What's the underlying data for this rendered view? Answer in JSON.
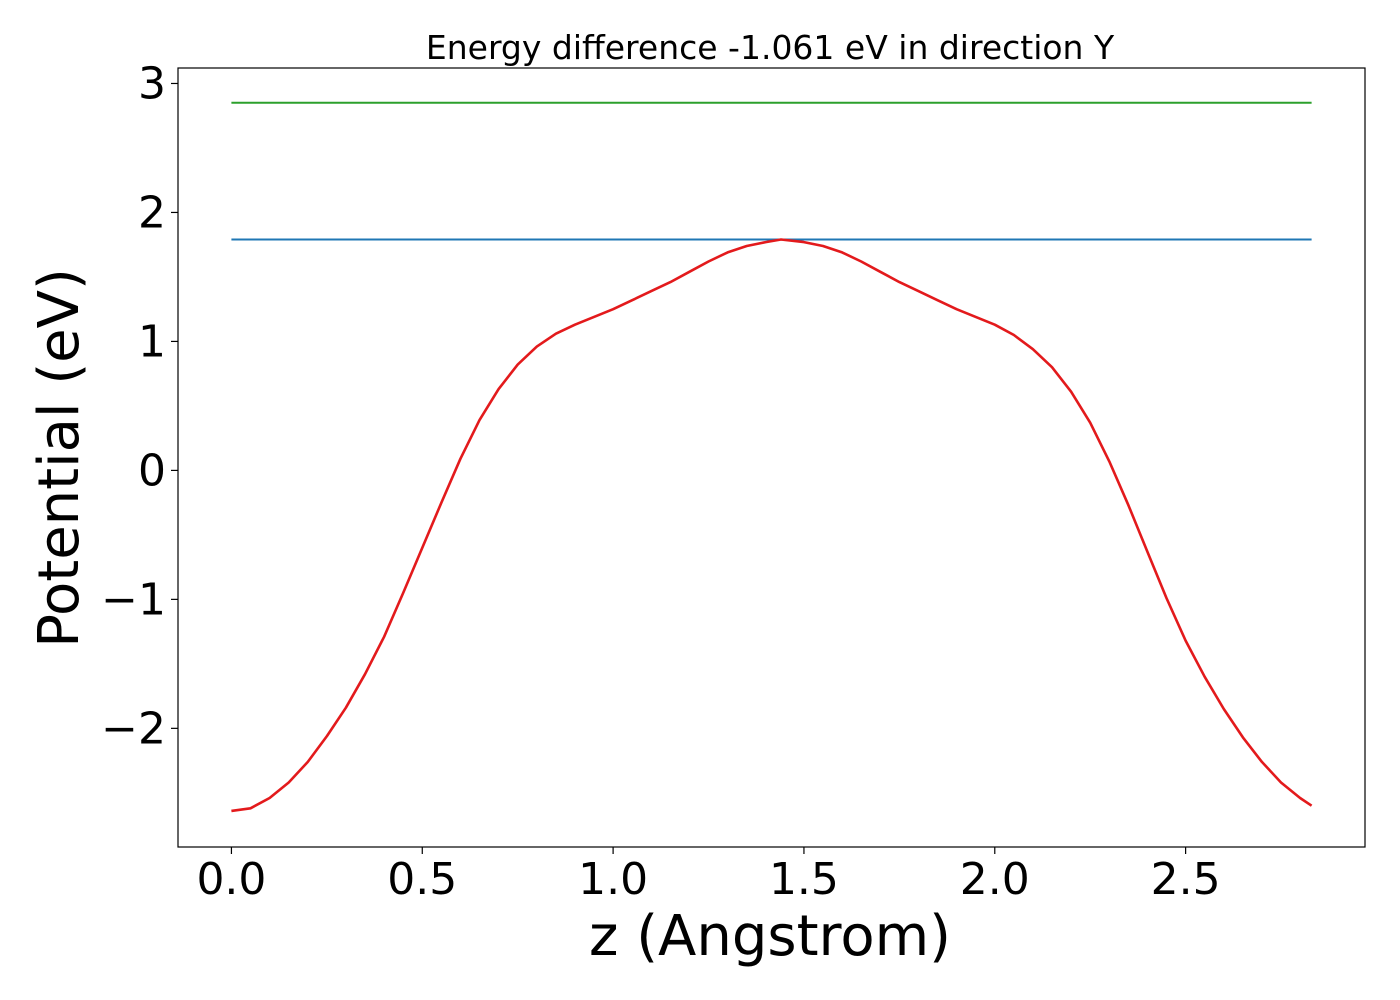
{
  "chart_data": {
    "type": "line",
    "title": "Energy difference -1.061 eV in direction Y",
    "xlabel": "z (Angstrom)",
    "ylabel": "Potential (eV)",
    "xlim": [
      -0.14,
      2.97
    ],
    "ylim": [
      -2.92,
      3.12
    ],
    "xticks": [
      0.0,
      0.5,
      1.0,
      1.5,
      2.0,
      2.5
    ],
    "xtick_labels": [
      "0.0",
      "0.5",
      "1.0",
      "1.5",
      "2.0",
      "2.5"
    ],
    "yticks": [
      -2,
      -1,
      0,
      1,
      2,
      3
    ],
    "ytick_labels": [
      "−2",
      "−1",
      "0",
      "1",
      "2",
      "3"
    ],
    "grid": false,
    "legend": false,
    "series": [
      {
        "color": "#2ca02c",
        "x": [
          0.0,
          2.83
        ],
        "y": [
          2.85,
          2.85
        ]
      },
      {
        "color": "#1f77b4",
        "x": [
          0.0,
          2.83
        ],
        "y": [
          1.79,
          1.79
        ]
      },
      {
        "color": "#e31a1c",
        "x": [
          0.0,
          0.05,
          0.1,
          0.15,
          0.2,
          0.25,
          0.3,
          0.35,
          0.4,
          0.45,
          0.5,
          0.55,
          0.6,
          0.65,
          0.7,
          0.75,
          0.8,
          0.85,
          0.9,
          0.95,
          1.0,
          1.05,
          1.1,
          1.15,
          1.2,
          1.25,
          1.3,
          1.35,
          1.4,
          1.44,
          1.5,
          1.55,
          1.6,
          1.65,
          1.7,
          1.75,
          1.8,
          1.85,
          1.9,
          1.95,
          2.0,
          2.05,
          2.1,
          2.15,
          2.2,
          2.25,
          2.3,
          2.35,
          2.4,
          2.45,
          2.5,
          2.55,
          2.6,
          2.65,
          2.7,
          2.75,
          2.8,
          2.83
        ],
        "y": [
          -2.64,
          -2.62,
          -2.54,
          -2.42,
          -2.26,
          -2.06,
          -1.84,
          -1.58,
          -1.29,
          -0.95,
          -0.6,
          -0.25,
          0.09,
          0.39,
          0.63,
          0.82,
          0.96,
          1.06,
          1.13,
          1.19,
          1.25,
          1.32,
          1.39,
          1.46,
          1.54,
          1.62,
          1.69,
          1.74,
          1.77,
          1.79,
          1.77,
          1.74,
          1.69,
          1.62,
          1.54,
          1.46,
          1.39,
          1.32,
          1.25,
          1.19,
          1.13,
          1.05,
          0.94,
          0.8,
          0.61,
          0.37,
          0.07,
          -0.27,
          -0.63,
          -0.99,
          -1.32,
          -1.6,
          -1.85,
          -2.07,
          -2.26,
          -2.42,
          -2.54,
          -2.6
        ]
      }
    ]
  }
}
